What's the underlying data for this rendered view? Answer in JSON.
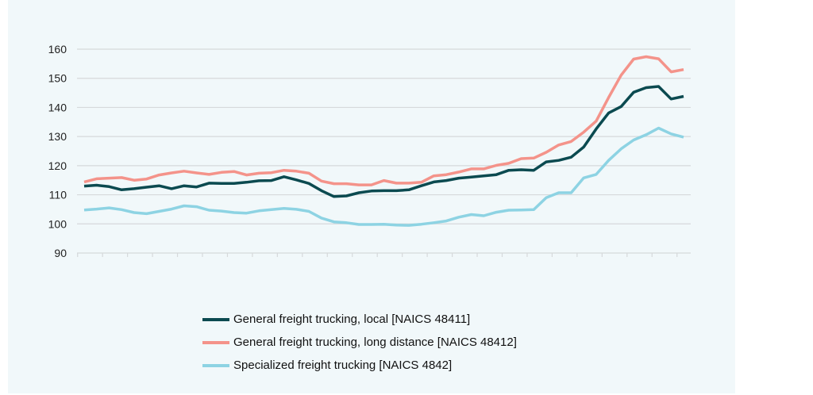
{
  "chart_data": {
    "type": "line",
    "title": "",
    "xlabel": "",
    "ylabel": "",
    "ylim": [
      90,
      160
    ],
    "yticks": [
      "90",
      "100",
      "110",
      "120",
      "130",
      "140",
      "150",
      "160"
    ],
    "grid": true,
    "legend_position": "bottom",
    "series": [
      {
        "name": "General freight trucking, local [NAICS 48411]",
        "color": "#0b4a50",
        "values": [
          113.0,
          113.3,
          112.8,
          111.7,
          112.1,
          112.6,
          113.1,
          112.1,
          113.1,
          112.7,
          114.0,
          113.9,
          113.9,
          114.3,
          114.8,
          114.9,
          116.2,
          115.1,
          113.9,
          111.4,
          109.4,
          109.6,
          110.7,
          111.3,
          111.4,
          111.4,
          111.7,
          113.1,
          114.4,
          114.9,
          115.7,
          116.1,
          116.5,
          116.9,
          118.4,
          118.6,
          118.4,
          121.3,
          121.8,
          122.9,
          126.4,
          132.6,
          138.1,
          140.3,
          145.2,
          146.8,
          147.2,
          142.9,
          143.8
        ]
      },
      {
        "name": "General freight trucking, long distance [NAICS 48412]",
        "color": "#f4938a",
        "values": [
          114.4,
          115.5,
          115.7,
          115.9,
          115.0,
          115.4,
          116.8,
          117.5,
          118.1,
          117.5,
          117.0,
          117.7,
          118.0,
          116.8,
          117.4,
          117.6,
          118.4,
          118.1,
          117.4,
          114.7,
          113.8,
          113.8,
          113.4,
          113.4,
          114.9,
          114.0,
          114.0,
          114.3,
          116.5,
          116.9,
          117.8,
          118.9,
          118.9,
          120.1,
          120.8,
          122.4,
          122.6,
          124.6,
          127.1,
          128.3,
          131.5,
          135.3,
          143.4,
          151.1,
          156.6,
          157.4,
          156.7,
          152.2,
          153.0
        ]
      },
      {
        "name": "Specialized freight trucking [NAICS 4842]",
        "color": "#8dd3e3",
        "values": [
          104.8,
          105.1,
          105.5,
          104.9,
          103.9,
          103.5,
          104.3,
          105.1,
          106.2,
          105.9,
          104.7,
          104.4,
          103.9,
          103.7,
          104.5,
          104.9,
          105.3,
          105.0,
          104.3,
          102.0,
          100.7,
          100.4,
          99.8,
          99.8,
          99.9,
          99.6,
          99.5,
          99.9,
          100.4,
          101.0,
          102.3,
          103.2,
          102.8,
          104.0,
          104.7,
          104.8,
          104.9,
          109.0,
          110.7,
          110.7,
          115.8,
          117.0,
          121.8,
          125.8,
          128.8,
          130.6,
          132.9,
          130.9,
          129.8
        ]
      }
    ]
  }
}
